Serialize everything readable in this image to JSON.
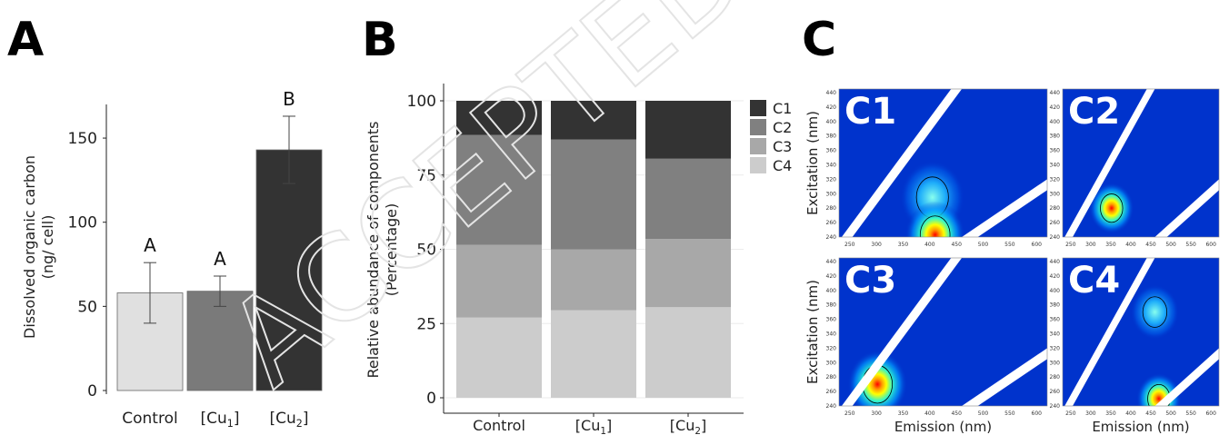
{
  "panels": {
    "a": {
      "letter": "A"
    },
    "b": {
      "letter": "B"
    },
    "c": {
      "letter": "C"
    }
  },
  "watermark": "ACCEPTED MANUSCRIPT",
  "chart_data": [
    {
      "type": "bar",
      "categories": [
        "Control",
        "[Cu",
        "[Cu"
      ],
      "category_subscripts": [
        "",
        "1",
        "2"
      ],
      "category_suffix": [
        "",
        "]",
        "]"
      ],
      "values": [
        58,
        59,
        143
      ],
      "errors": [
        18,
        9,
        20
      ],
      "group_letters": [
        "A",
        "A",
        "B"
      ],
      "bar_colors": [
        "#e0e0e0",
        "#7a7a7a",
        "#333333"
      ],
      "ylabel_line1": "Dissolved organic carbon",
      "ylabel_line2": "(ng/ cell)",
      "yticks": [
        0,
        50,
        100,
        150
      ],
      "ylim": [
        0,
        170
      ]
    },
    {
      "type": "bar",
      "stacked": true,
      "categories": [
        "Control",
        "[Cu",
        "[Cu"
      ],
      "category_subscripts": [
        "",
        "1",
        "2"
      ],
      "category_suffix": [
        "",
        "]",
        "]"
      ],
      "series": [
        {
          "name": "C4",
          "color": "#cccccc",
          "values": [
            27,
            29.5,
            30.5
          ]
        },
        {
          "name": "C3",
          "color": "#a8a8a8",
          "values": [
            24.5,
            20.5,
            23
          ]
        },
        {
          "name": "C2",
          "color": "#808080",
          "values": [
            37,
            37,
            27
          ]
        },
        {
          "name": "C1",
          "color": "#333333",
          "values": [
            11.5,
            13,
            19.5
          ]
        }
      ],
      "legend_order": [
        "C1",
        "C2",
        "C3",
        "C4"
      ],
      "legend": "right",
      "ylabel_line1": "Relative abundance of components",
      "ylabel_line2": "(Percentage)",
      "yticks": [
        0,
        25,
        50,
        75,
        100
      ],
      "ylim": [
        0,
        103
      ],
      "grid": true
    },
    {
      "type": "heatmap",
      "xlabel": "Emission (nm)",
      "ylabel": "Excitation (nm)",
      "xticks": [
        "250",
        "300",
        "350",
        "400",
        "450",
        "500",
        "550",
        "600"
      ],
      "yticks": [
        "240",
        "260",
        "280",
        "300",
        "320",
        "340",
        "360",
        "380",
        "400",
        "420",
        "440"
      ],
      "xlim": [
        230,
        620
      ],
      "ylim": [
        240,
        445
      ],
      "components": [
        {
          "label": "C1",
          "peaks": [
            {
              "em": 405,
              "ex": 295,
              "level": 0.55
            },
            {
              "em": 410,
              "ex": 243,
              "level": 1.0
            }
          ]
        },
        {
          "label": "C2",
          "peaks": [
            {
              "em": 352,
              "ex": 280,
              "level": 1.0
            }
          ]
        },
        {
          "label": "C3",
          "peaks": [
            {
              "em": 302,
              "ex": 270,
              "level": 1.0
            }
          ]
        },
        {
          "label": "C4",
          "peaks": [
            {
              "em": 460,
              "ex": 370,
              "level": 0.45
            },
            {
              "em": 470,
              "ex": 250,
              "level": 0.9
            }
          ]
        }
      ]
    }
  ]
}
